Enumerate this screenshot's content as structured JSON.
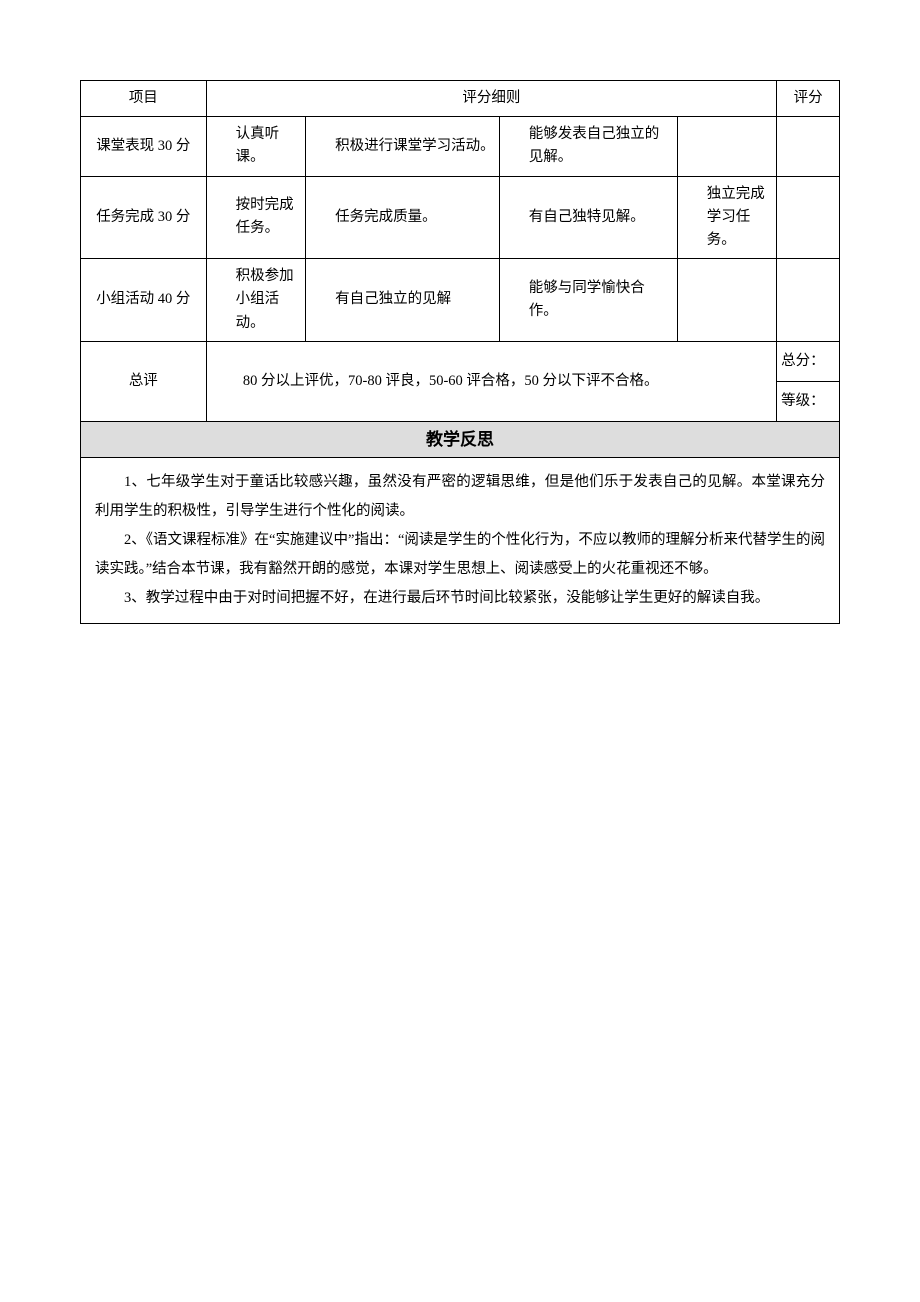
{
  "table": {
    "header": {
      "project": "项目",
      "criteria": "评分细则",
      "score": "评分"
    },
    "rows": [
      {
        "project": "课堂表现 30 分",
        "c1": "认真听课。",
        "c2": "积极进行课堂学习活动。",
        "c3": "能够发表自己独立的见解。",
        "c4": ""
      },
      {
        "project": "任务完成 30 分",
        "c1": "按时完成任务。",
        "c2": "任务完成质量。",
        "c3": "有自己独特见解。",
        "c4": "独立完成学习任务。"
      },
      {
        "project": "小组活动 40 分",
        "c1": "积极参加小组活动。",
        "c2": "有自己独立的见解",
        "c3": "能够与同学愉快合作。",
        "c4": ""
      }
    ],
    "summary": {
      "label": "总评",
      "text": "80 分以上评优，70-80 评良，50-60 评合格，50 分以下评不合格。",
      "total_label": "总分：",
      "grade_label": "等级："
    }
  },
  "reflection": {
    "title": "教学反思",
    "paragraphs": [
      "1、七年级学生对于童话比较感兴趣，虽然没有严密的逻辑思维，但是他们乐于发表自己的见解。本堂课充分利用学生的积极性，引导学生进行个性化的阅读。",
      "2、《语文课程标准》在“实施建议中”指出：“阅读是学生的个性化行为，不应以教师的理解分析来代替学生的阅读实践。”结合本节课，我有豁然开朗的感觉，本课对学生思想上、阅读感受上的火花重视还不够。",
      "3、教学过程中由于对时间把握不好，在进行最后环节时间比较紧张，没能够让学生更好的解读自我。"
    ]
  }
}
